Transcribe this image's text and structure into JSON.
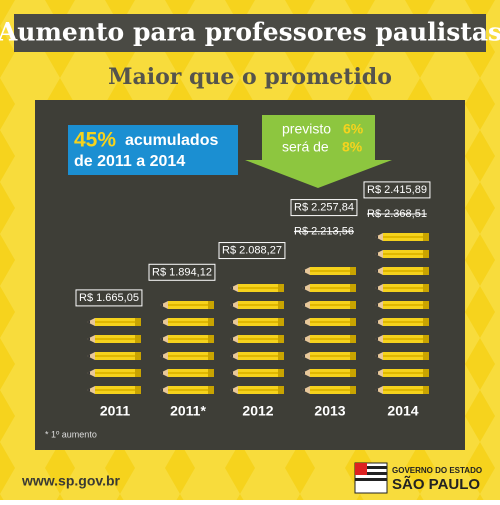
{
  "chart_data": {
    "type": "pictograph",
    "title": "Aumento para professores paulistas",
    "subtitle": "Maior que o prometido",
    "categories": [
      "2011",
      "2011*",
      "2012",
      "2013",
      "2014"
    ],
    "series": [
      {
        "color": "#f5d21c",
        "values": [
          1665.05,
          1894.12,
          2088.27,
          2257.84,
          2415.89
        ],
        "value_labels": [
          "R$ 1.665,05",
          "R$ 1.894,12",
          "R$ 2.088,27",
          "R$ 2.257,84",
          "R$ 2.415,89"
        ]
      },
      {
        "color": "#ffffff",
        "values": [
          null,
          null,
          null,
          2213.56,
          2368.51
        ],
        "value_labels": [
          null,
          null,
          null,
          "R$ 2.213,56",
          "R$ 2.368,51"
        ]
      }
    ],
    "callout": {
      "highlight": "45%",
      "line1": "acumulados",
      "line2": "de 2011 a 2014"
    },
    "arrow": {
      "line1": "previsto",
      "value1": "6%",
      "line2": "será de",
      "value2": "8%"
    },
    "footnote": "* 1º aumento",
    "url": "www.sp.gov.br",
    "logo": {
      "line1": "GOVERNO DO ESTADO",
      "line2": "SÃO PAULO"
    }
  }
}
